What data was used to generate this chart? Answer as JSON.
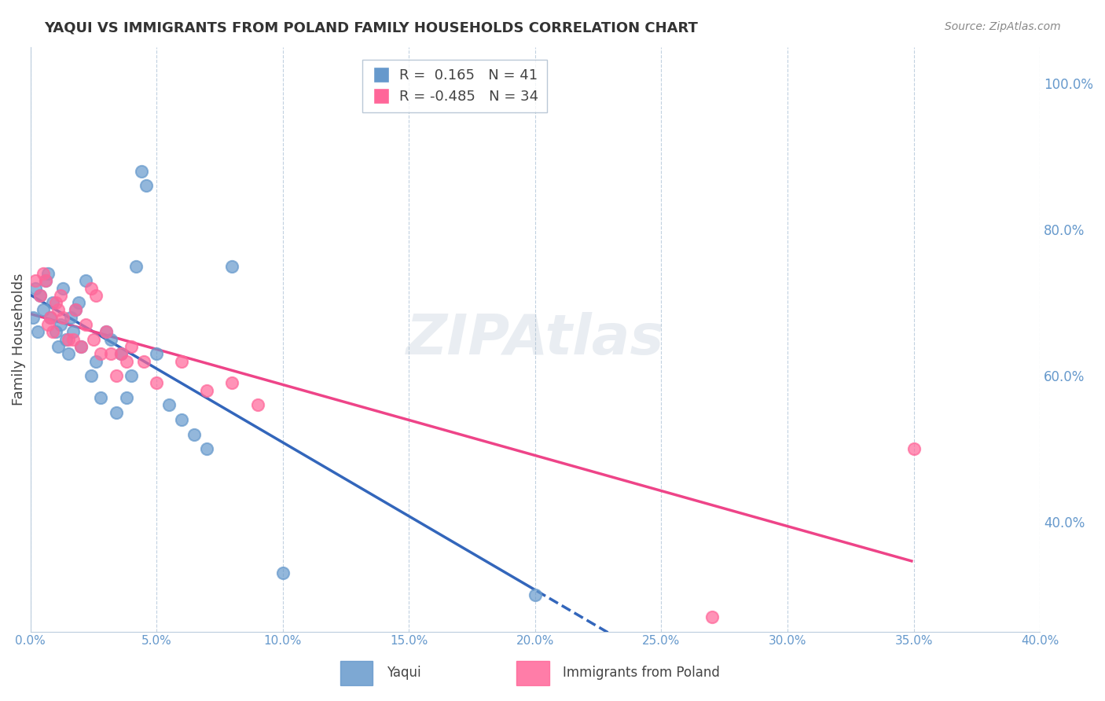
{
  "title": "YAQUI VS IMMIGRANTS FROM POLAND FAMILY HOUSEHOLDS CORRELATION CHART",
  "source": "Source: ZipAtlas.com",
  "ylabel": "Family Households",
  "right_yticks": [
    0.4,
    0.6,
    0.8,
    1.0
  ],
  "right_yticklabels": [
    "40.0%",
    "60.0%",
    "80.0%",
    "100.0%"
  ],
  "xlim": [
    0.0,
    0.4
  ],
  "ylim": [
    0.25,
    1.05
  ],
  "blue_color": "#6699CC",
  "pink_color": "#FF6699",
  "blue_line_color": "#3366BB",
  "pink_line_color": "#EE4488",
  "yaqui_x": [
    0.001,
    0.002,
    0.003,
    0.004,
    0.005,
    0.006,
    0.007,
    0.008,
    0.009,
    0.01,
    0.011,
    0.012,
    0.013,
    0.014,
    0.015,
    0.016,
    0.017,
    0.018,
    0.019,
    0.02,
    0.022,
    0.024,
    0.026,
    0.028,
    0.03,
    0.032,
    0.034,
    0.036,
    0.038,
    0.04,
    0.042,
    0.044,
    0.046,
    0.05,
    0.055,
    0.06,
    0.065,
    0.07,
    0.08,
    0.1,
    0.2
  ],
  "yaqui_y": [
    0.68,
    0.72,
    0.66,
    0.71,
    0.69,
    0.73,
    0.74,
    0.68,
    0.7,
    0.66,
    0.64,
    0.67,
    0.72,
    0.65,
    0.63,
    0.68,
    0.66,
    0.69,
    0.7,
    0.64,
    0.73,
    0.6,
    0.62,
    0.57,
    0.66,
    0.65,
    0.55,
    0.63,
    0.57,
    0.6,
    0.75,
    0.88,
    0.86,
    0.63,
    0.56,
    0.54,
    0.52,
    0.5,
    0.75,
    0.33,
    0.3
  ],
  "poland_x": [
    0.002,
    0.004,
    0.005,
    0.006,
    0.007,
    0.008,
    0.009,
    0.01,
    0.011,
    0.012,
    0.013,
    0.015,
    0.017,
    0.018,
    0.02,
    0.022,
    0.024,
    0.025,
    0.026,
    0.028,
    0.03,
    0.032,
    0.034,
    0.036,
    0.038,
    0.04,
    0.045,
    0.05,
    0.06,
    0.07,
    0.08,
    0.09,
    0.27,
    0.35
  ],
  "poland_y": [
    0.73,
    0.71,
    0.74,
    0.73,
    0.67,
    0.68,
    0.66,
    0.7,
    0.69,
    0.71,
    0.68,
    0.65,
    0.65,
    0.69,
    0.64,
    0.67,
    0.72,
    0.65,
    0.71,
    0.63,
    0.66,
    0.63,
    0.6,
    0.63,
    0.62,
    0.64,
    0.62,
    0.59,
    0.62,
    0.58,
    0.59,
    0.56,
    0.27,
    0.5
  ],
  "bg_color": "#FFFFFF",
  "grid_color": "#BBCCDD",
  "tick_color": "#6699CC",
  "title_color": "#333333",
  "source_color": "#888888"
}
